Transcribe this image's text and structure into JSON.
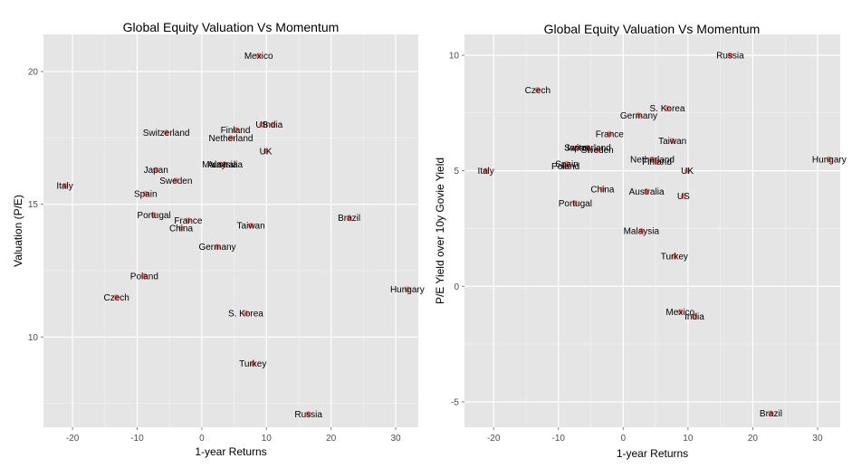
{
  "chart_data": [
    {
      "type": "scatter",
      "title": "Global Equity Valuation Vs Momentum",
      "xlabel": "1-year Returns",
      "ylabel": "Valuation (P/E)",
      "xlim": [
        -24.5,
        33.5
      ],
      "ylim": [
        6.6,
        21.4
      ],
      "xticks": [
        -20,
        -10,
        0,
        10,
        20,
        30
      ],
      "yticks": [
        10,
        15,
        20
      ],
      "grid": true,
      "background": "#e5e5e5",
      "point_color": "#f8766d",
      "points": [
        {
          "label": "Mexico",
          "x": 8.8,
          "y": 20.6
        },
        {
          "label": "US",
          "x": 9.3,
          "y": 18.0
        },
        {
          "label": "India",
          "x": 11.0,
          "y": 18.0
        },
        {
          "label": "Switzerland",
          "x": -5.5,
          "y": 17.7
        },
        {
          "label": "Finland",
          "x": 5.2,
          "y": 17.8
        },
        {
          "label": "Netherland",
          "x": 4.5,
          "y": 17.5
        },
        {
          "label": "UK",
          "x": 9.9,
          "y": 17.0
        },
        {
          "label": "Malaysia",
          "x": 2.8,
          "y": 16.5
        },
        {
          "label": "Australia",
          "x": 3.6,
          "y": 16.5
        },
        {
          "label": "Japan",
          "x": -7.1,
          "y": 16.3
        },
        {
          "label": "Sweden",
          "x": -4.0,
          "y": 15.9
        },
        {
          "label": "Italy",
          "x": -21.2,
          "y": 15.7
        },
        {
          "label": "Spain",
          "x": -8.7,
          "y": 15.4
        },
        {
          "label": "Portugal",
          "x": -7.4,
          "y": 14.6
        },
        {
          "label": "France",
          "x": -2.1,
          "y": 14.4
        },
        {
          "label": "China",
          "x": -3.2,
          "y": 14.1
        },
        {
          "label": "Taiwan",
          "x": 7.6,
          "y": 14.2
        },
        {
          "label": "Brazil",
          "x": 22.8,
          "y": 14.5
        },
        {
          "label": "Germany",
          "x": 2.4,
          "y": 13.4
        },
        {
          "label": "Poland",
          "x": -8.9,
          "y": 12.3
        },
        {
          "label": "Hungary",
          "x": 31.8,
          "y": 11.8
        },
        {
          "label": "Czech",
          "x": -13.2,
          "y": 11.5
        },
        {
          "label": "S. Korea",
          "x": 6.8,
          "y": 10.9
        },
        {
          "label": "Turkey",
          "x": 7.9,
          "y": 9.0
        },
        {
          "label": "Russia",
          "x": 16.5,
          "y": 7.1
        }
      ]
    },
    {
      "type": "scatter",
      "title": "Global Equity Valuation Vs Momentum",
      "xlabel": "1-year Returns",
      "ylabel": "P/E Yield over 10y Govie Yield",
      "xlim": [
        -24.5,
        33.5
      ],
      "ylim": [
        -6.1,
        10.9
      ],
      "xticks": [
        -20,
        -10,
        0,
        10,
        20,
        30
      ],
      "yticks": [
        -5,
        0,
        5,
        10
      ],
      "grid": true,
      "background": "#e5e5e5",
      "point_color": "#f8766d",
      "points": [
        {
          "label": "Russia",
          "x": 16.5,
          "y": 10.0
        },
        {
          "label": "Czech",
          "x": -13.2,
          "y": 8.5
        },
        {
          "label": "S. Korea",
          "x": 6.8,
          "y": 7.7
        },
        {
          "label": "Germany",
          "x": 2.4,
          "y": 7.4
        },
        {
          "label": "France",
          "x": -2.1,
          "y": 6.6
        },
        {
          "label": "Taiwan",
          "x": 7.6,
          "y": 6.3
        },
        {
          "label": "Switzerland",
          "x": -5.5,
          "y": 6.0
        },
        {
          "label": "Japan",
          "x": -7.1,
          "y": 6.0
        },
        {
          "label": "Sweden",
          "x": -4.0,
          "y": 5.9
        },
        {
          "label": "Netherland",
          "x": 4.5,
          "y": 5.5
        },
        {
          "label": "Finland",
          "x": 5.2,
          "y": 5.4
        },
        {
          "label": "Hungary",
          "x": 31.8,
          "y": 5.5
        },
        {
          "label": "Spain",
          "x": -8.7,
          "y": 5.3
        },
        {
          "label": "Poland",
          "x": -8.9,
          "y": 5.2
        },
        {
          "label": "UK",
          "x": 9.9,
          "y": 5.0
        },
        {
          "label": "Italy",
          "x": -21.2,
          "y": 5.0
        },
        {
          "label": "China",
          "x": -3.2,
          "y": 4.2
        },
        {
          "label": "Australia",
          "x": 3.6,
          "y": 4.1
        },
        {
          "label": "US",
          "x": 9.3,
          "y": 3.9
        },
        {
          "label": "Portugal",
          "x": -7.4,
          "y": 3.6
        },
        {
          "label": "Malaysia",
          "x": 2.8,
          "y": 2.4
        },
        {
          "label": "Turkey",
          "x": 7.9,
          "y": 1.3
        },
        {
          "label": "Mexico",
          "x": 8.8,
          "y": -1.1
        },
        {
          "label": "India",
          "x": 11.0,
          "y": -1.3
        },
        {
          "label": "Brazil",
          "x": 22.8,
          "y": -5.5
        }
      ]
    }
  ]
}
